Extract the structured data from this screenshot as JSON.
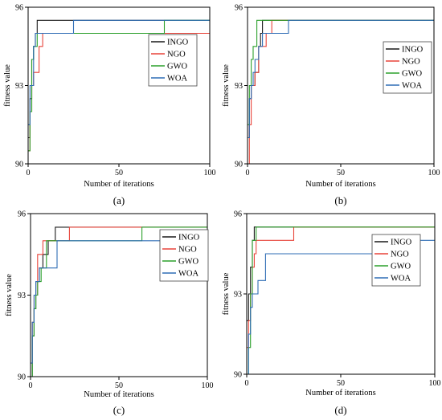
{
  "colors": {
    "INGO": "#1a1a1a",
    "NGO": "#e8443a",
    "GWO": "#2ca02c",
    "WOA": "#2f6db5"
  },
  "chart_data": [
    {
      "id": "a",
      "type": "line",
      "panel_label": "(a)",
      "xlabel": "Number of iterations",
      "ylabel": "fitness value",
      "xlim": [
        0,
        100
      ],
      "ylim": [
        90,
        96
      ],
      "x_ticks": [
        0,
        50,
        100
      ],
      "y_ticks": [
        90,
        93,
        96
      ],
      "grid": false,
      "legend_position": "top-right",
      "series": [
        {
          "name": "INGO",
          "color": "#1a1a1a",
          "x": [
            0,
            1,
            2,
            3,
            4,
            5,
            100
          ],
          "y": [
            91.0,
            92.5,
            94.0,
            94.5,
            95.0,
            95.5,
            95.5
          ]
        },
        {
          "name": "NGO",
          "color": "#e8443a",
          "x": [
            0,
            1,
            2,
            3,
            5,
            6,
            8,
            100
          ],
          "y": [
            90.5,
            92.0,
            93.0,
            93.5,
            93.5,
            94.5,
            95.0,
            95.0
          ]
        },
        {
          "name": "GWO",
          "color": "#2ca02c",
          "x": [
            0,
            1,
            2,
            3,
            5,
            74,
            75,
            100
          ],
          "y": [
            90.5,
            92.0,
            94.0,
            94.5,
            95.0,
            95.0,
            95.5,
            95.5
          ]
        },
        {
          "name": "WOA",
          "color": "#2f6db5",
          "x": [
            0,
            1,
            3,
            4,
            24,
            25,
            100
          ],
          "y": [
            91.5,
            93.0,
            94.5,
            95.0,
            95.0,
            95.5,
            95.5
          ]
        }
      ]
    },
    {
      "id": "b",
      "type": "line",
      "panel_label": "(b)",
      "xlabel": "Number of iterations",
      "ylabel": "fitness value",
      "xlim": [
        0,
        100
      ],
      "ylim": [
        90,
        96
      ],
      "x_ticks": [
        0,
        50,
        100
      ],
      "y_ticks": [
        90,
        93,
        96
      ],
      "grid": false,
      "legend_position": "top-right",
      "series": [
        {
          "name": "INGO",
          "color": "#1a1a1a",
          "x": [
            0,
            1,
            2,
            4,
            6,
            7,
            8,
            100
          ],
          "y": [
            91.0,
            92.5,
            93.0,
            93.5,
            94.5,
            95.0,
            95.5,
            95.5
          ]
        },
        {
          "name": "NGO",
          "color": "#e8443a",
          "x": [
            0,
            1,
            2,
            4,
            6,
            8,
            10,
            13,
            100
          ],
          "y": [
            90.0,
            91.5,
            93.0,
            93.5,
            94.5,
            94.5,
            95.0,
            95.5,
            95.5
          ]
        },
        {
          "name": "GWO",
          "color": "#2ca02c",
          "x": [
            0,
            1,
            2,
            3,
            5,
            100
          ],
          "y": [
            91.5,
            93.0,
            94.0,
            94.5,
            95.5,
            95.5
          ]
        },
        {
          "name": "WOA",
          "color": "#2f6db5",
          "x": [
            0,
            1,
            2,
            3,
            4,
            6,
            8,
            21,
            22,
            100
          ],
          "y": [
            91.0,
            92.5,
            93.0,
            93.5,
            94.0,
            94.5,
            95.0,
            95.0,
            95.5,
            95.5
          ]
        }
      ]
    },
    {
      "id": "c",
      "type": "line",
      "panel_label": "(c)",
      "xlabel": "Number of iterations",
      "ylabel": "fitness value",
      "xlim": [
        0,
        100
      ],
      "ylim": [
        90,
        96
      ],
      "x_ticks": [
        0,
        50,
        100
      ],
      "y_ticks": [
        90,
        93,
        96
      ],
      "grid": false,
      "legend_position": "top-right",
      "series": [
        {
          "name": "INGO",
          "color": "#1a1a1a",
          "x": [
            0,
            1,
            2,
            3,
            5,
            7,
            10,
            14,
            100
          ],
          "y": [
            90.0,
            91.5,
            92.5,
            93.5,
            94.0,
            94.5,
            95.0,
            95.5,
            95.5
          ]
        },
        {
          "name": "NGO",
          "color": "#e8443a",
          "x": [
            0,
            1,
            2,
            4,
            7,
            22,
            100
          ],
          "y": [
            90.5,
            92.0,
            93.0,
            94.5,
            95.0,
            95.5,
            95.5
          ]
        },
        {
          "name": "GWO",
          "color": "#2ca02c",
          "x": [
            0,
            1,
            2,
            3,
            4,
            6,
            9,
            62,
            63,
            100
          ],
          "y": [
            90.0,
            91.5,
            92.5,
            93.0,
            93.5,
            94.0,
            95.0,
            95.0,
            95.5,
            95.5
          ]
        },
        {
          "name": "WOA",
          "color": "#2f6db5",
          "x": [
            0,
            1,
            2,
            3,
            5,
            12,
            15,
            100
          ],
          "y": [
            90.5,
            92.0,
            93.0,
            93.5,
            94.0,
            94.0,
            95.0,
            95.0
          ]
        }
      ]
    },
    {
      "id": "d",
      "type": "line",
      "panel_label": "(d)",
      "xlabel": "Number of iterations",
      "ylabel": "fitness value",
      "xlim": [
        0,
        100
      ],
      "ylim": [
        90,
        96
      ],
      "x_ticks": [
        0,
        50,
        100
      ],
      "y_ticks": [
        90,
        93,
        96
      ],
      "grid": false,
      "legend_position": "top-right",
      "series": [
        {
          "name": "INGO",
          "color": "#1a1a1a",
          "x": [
            0,
            1,
            2,
            3,
            4,
            5,
            100
          ],
          "y": [
            92.0,
            93.0,
            94.0,
            95.0,
            95.5,
            95.5,
            95.5
          ]
        },
        {
          "name": "NGO",
          "color": "#e8443a",
          "x": [
            0,
            1,
            2,
            3,
            4,
            5,
            24,
            25,
            100
          ],
          "y": [
            91.0,
            92.0,
            93.0,
            94.0,
            94.5,
            95.0,
            95.0,
            95.5,
            95.5
          ]
        },
        {
          "name": "GWO",
          "color": "#2ca02c",
          "x": [
            0,
            1,
            2,
            3,
            5,
            100
          ],
          "y": [
            90.0,
            91.0,
            93.0,
            95.0,
            95.5,
            95.5
          ]
        },
        {
          "name": "WOA",
          "color": "#2f6db5",
          "x": [
            0,
            1,
            2,
            3,
            6,
            7,
            10,
            77,
            78,
            100
          ],
          "y": [
            90.0,
            91.5,
            92.5,
            93.0,
            93.5,
            93.5,
            94.5,
            94.5,
            95.0,
            95.0
          ]
        }
      ]
    }
  ]
}
